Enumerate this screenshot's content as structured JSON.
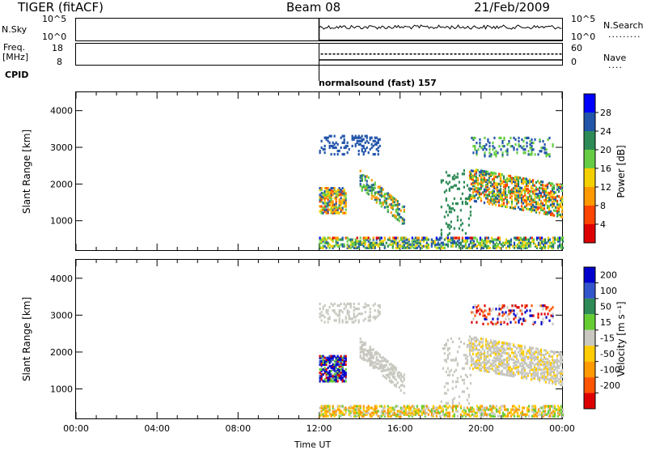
{
  "header": {
    "left_title": "TIGER (fitACF)",
    "center_title": "Beam 08",
    "right_title": "21/Feb/2009"
  },
  "top_panels": {
    "nsky_label": "N.Sky",
    "nsky_ticks": [
      "10^5",
      "10^0"
    ],
    "nsearch_label": "N.Search",
    "nsearch_ticks": [
      "10^5",
      "10^0"
    ],
    "freq_label_1": "Freq.",
    "freq_label_2": "[MHz]",
    "freq_ticks": [
      "18",
      "8"
    ],
    "nave_label": "Nave",
    "nave_ticks": [
      "60",
      "0"
    ],
    "cpid_label": "CPID",
    "cpid_text": "normalsound (fast) 157"
  },
  "chart_data": [
    {
      "type": "heatmap",
      "title": "",
      "ylabel": "Slant Range [km]",
      "xlabel": "Time UT",
      "x_ticks": [
        "00:00",
        "04:00",
        "08:00",
        "12:00",
        "16:00",
        "20:00",
        "00:00"
      ],
      "y_ticks": [
        "1000",
        "2000",
        "3000",
        "4000"
      ],
      "ylim": [
        200,
        4500
      ],
      "xlim_hours": [
        0,
        24
      ],
      "colorbar": {
        "label": "Power [dB]",
        "ticks": [
          "4",
          "8",
          "12",
          "16",
          "20",
          "24",
          "28"
        ],
        "colors": [
          "#0000ff",
          "#2255aa",
          "#2e8b57",
          "#66cc44",
          "#f5d000",
          "#ff9900",
          "#ff4400",
          "#dd0000"
        ]
      }
    },
    {
      "type": "heatmap",
      "title": "",
      "ylabel": "Slant Range [km]",
      "xlabel": "Time UT",
      "x_ticks": [
        "00:00",
        "04:00",
        "08:00",
        "12:00",
        "16:00",
        "20:00",
        "00:00"
      ],
      "y_ticks": [
        "1000",
        "2000",
        "3000",
        "4000"
      ],
      "ylim": [
        200,
        4500
      ],
      "xlim_hours": [
        0,
        24
      ],
      "colorbar": {
        "label": "Velocity [m s⁻¹]",
        "ticks": [
          "200",
          "100",
          "50",
          "15",
          "-15",
          "-50",
          "-100",
          "-200"
        ],
        "colors": [
          "#0000cc",
          "#3355cc",
          "#2e8b57",
          "#66cc33",
          "#c8c8c0",
          "#ffcc00",
          "#ff9900",
          "#ff5500",
          "#dd0000"
        ]
      }
    }
  ],
  "x_axis_title": "Time UT"
}
